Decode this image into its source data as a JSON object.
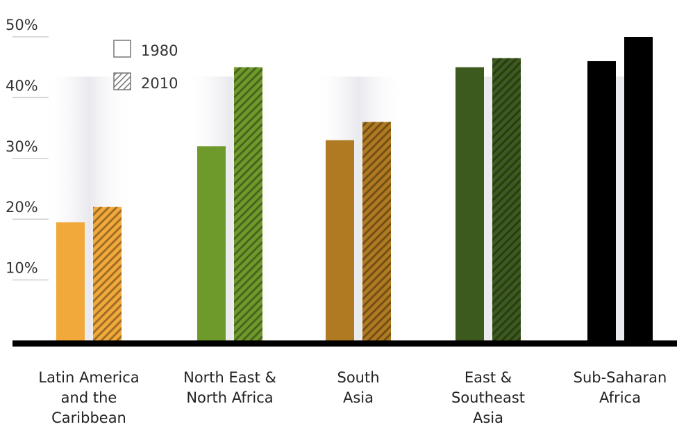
{
  "chart_data": {
    "type": "bar",
    "title": "",
    "xlabel": "",
    "ylabel": "",
    "ylim": [
      0,
      50
    ],
    "yticks": [
      10,
      20,
      30,
      40,
      50
    ],
    "ytick_labels": [
      "10%",
      "20%",
      "30%",
      "40%",
      "50%"
    ],
    "legend": {
      "placement": "top-left",
      "entries": [
        {
          "label": "1980",
          "pattern": "solid"
        },
        {
          "label": "2010",
          "pattern": "hatched"
        }
      ]
    },
    "categories": [
      "Latin America and the Caribbean",
      "North East & North Africa",
      "South Asia",
      "East & Southeast Asia",
      "Sub-Saharan Africa"
    ],
    "category_label_lines": [
      [
        "Latin America",
        "and the",
        "Caribbean"
      ],
      [
        "North East &",
        "North Africa"
      ],
      [
        "South",
        "Asia"
      ],
      [
        "East &",
        "Southeast",
        "Asia"
      ],
      [
        "Sub-Saharan",
        "Africa"
      ]
    ],
    "series": [
      {
        "name": "1980",
        "values": [
          19.5,
          32,
          33,
          45,
          46
        ]
      },
      {
        "name": "2010",
        "values": [
          22,
          45,
          36,
          46.5,
          50
        ]
      }
    ],
    "category_colors": [
      "#f2a93b",
      "#6e9a2c",
      "#b07a22",
      "#3d5a1e",
      "#000000"
    ],
    "grid": false
  }
}
